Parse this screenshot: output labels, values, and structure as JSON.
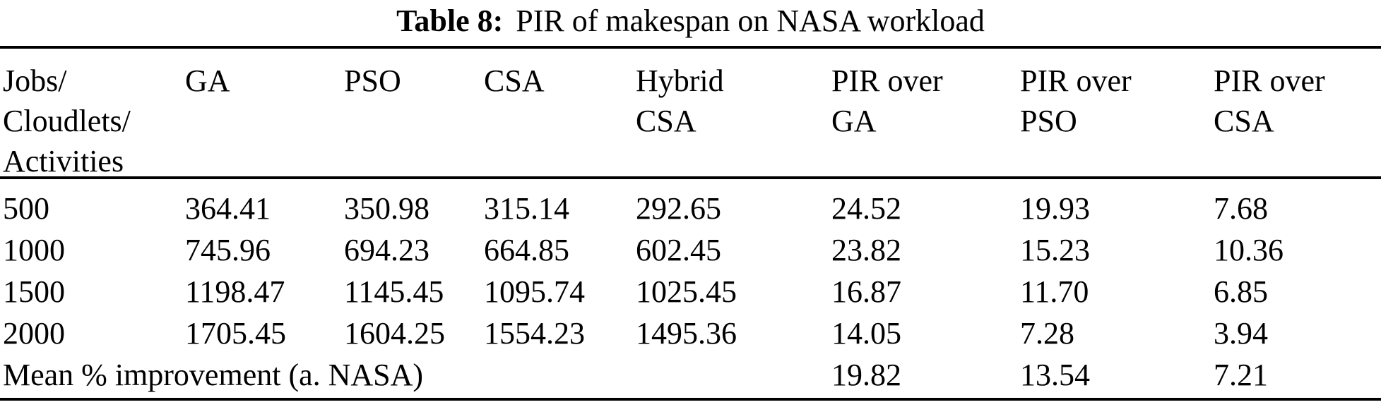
{
  "caption": {
    "label": "Table 8:",
    "text": "PIR of makespan on NASA workload"
  },
  "table": {
    "headers": [
      "Jobs/\nCloudlets/\nActivities",
      "GA",
      "PSO",
      "CSA",
      "Hybrid\nCSA",
      "PIR over\nGA",
      "PIR over\nPSO",
      "PIR over\nCSA"
    ],
    "rows": [
      [
        "500",
        "364.41",
        "350.98",
        "315.14",
        "292.65",
        "24.52",
        "19.93",
        "7.68"
      ],
      [
        "1000",
        "745.96",
        "694.23",
        "664.85",
        "602.45",
        "23.82",
        "15.23",
        "10.36"
      ],
      [
        "1500",
        "1198.47",
        "1145.45",
        "1095.74",
        "1025.45",
        "16.87",
        "11.70",
        "6.85"
      ],
      [
        "2000",
        "1705.45",
        "1604.25",
        "1554.23",
        "1495.36",
        "14.05",
        "7.28",
        "3.94"
      ]
    ],
    "footer": {
      "label": "Mean % improvement (a. NASA)",
      "values": [
        "19.82",
        "13.54",
        "7.21"
      ]
    }
  },
  "colors": {
    "text": "#000000",
    "background": "#ffffff",
    "rule": "#000000"
  }
}
